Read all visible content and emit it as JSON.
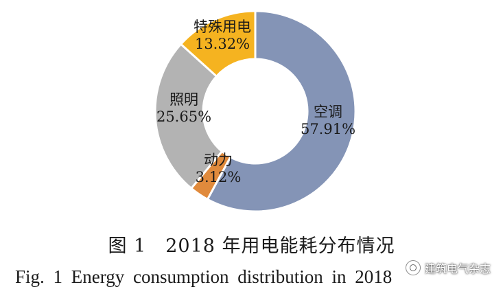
{
  "chart_data": {
    "type": "pie",
    "donut": true,
    "slices": [
      {
        "name": "空调",
        "value": 57.91,
        "label": "57.91%",
        "color": "#8494b6"
      },
      {
        "name": "动力",
        "value": 3.12,
        "label": "3.12%",
        "color": "#e08a3c"
      },
      {
        "name": "照明",
        "value": 25.65,
        "label": "25.65%",
        "color": "#b3b3b3"
      },
      {
        "name": "特殊用电",
        "value": 13.32,
        "label": "13.32%",
        "color": "#f5b320"
      }
    ]
  },
  "caption": {
    "cn": "图 1　2018 年用电能耗分布情况",
    "en": "Fig. 1   Energy consumption distribution in 2018"
  },
  "watermark": {
    "text": "建筑电气杂志",
    "icon": "wechat-icon"
  }
}
